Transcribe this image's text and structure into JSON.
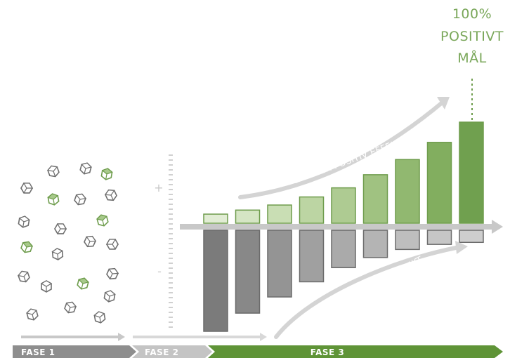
{
  "goal": {
    "lines": [
      "100%",
      "POSITIVT",
      "MÅL"
    ]
  },
  "curves": {
    "positive_label": "OPTIMER POSITIV EFFEKT",
    "negative_label": "MINIMER NEGATIV EFFEKT"
  },
  "scale": {
    "plus": "+",
    "minus": "-"
  },
  "phases": [
    {
      "label": "FASE 1",
      "color": "#8e8e8e"
    },
    {
      "label": "FASE 2",
      "color": "#c4c4c4"
    },
    {
      "label": "FASE 3",
      "color": "#5f9437"
    }
  ],
  "chart_data": {
    "type": "bar",
    "positive": [
      0.9,
      1.3,
      1.8,
      2.6,
      3.5,
      4.8,
      6.3,
      8.0,
      10.0
    ],
    "negative": [
      10.0,
      8.2,
      6.6,
      5.1,
      3.7,
      2.7,
      1.9,
      1.4,
      1.2
    ]
  },
  "colors": {
    "pos_fills": [
      "#e1ecd4",
      "#d5e5c4",
      "#c9deb4",
      "#bcd5a3",
      "#aecb92",
      "#a0c281",
      "#91b870",
      "#82ae5f",
      "#70a04f"
    ],
    "pos_stroke": "#6e9c4c",
    "neg_fills": [
      "#7b7b7b",
      "#888888",
      "#949494",
      "#a0a0a0",
      "#aaaaaa",
      "#b4b4b4",
      "#bebebe",
      "#c6c6c6",
      "#cecece"
    ],
    "neg_stroke": "#6b6b6b",
    "baseline": "#c8c8c8",
    "cube_gray": "#6e6e6e",
    "cube_green": "#6e9c4c"
  },
  "cubes": [
    {
      "green": false
    },
    {
      "green": false
    },
    {
      "green": true
    },
    {
      "green": false
    },
    {
      "green": true
    },
    {
      "green": false
    },
    {
      "green": false
    },
    {
      "green": false
    },
    {
      "green": false
    },
    {
      "green": true
    },
    {
      "green": true
    },
    {
      "green": false
    },
    {
      "green": false
    },
    {
      "green": false
    },
    {
      "green": false
    },
    {
      "green": false
    },
    {
      "green": true
    },
    {
      "green": false
    },
    {
      "green": false
    },
    {
      "green": false
    },
    {
      "green": false
    },
    {
      "green": false
    }
  ]
}
